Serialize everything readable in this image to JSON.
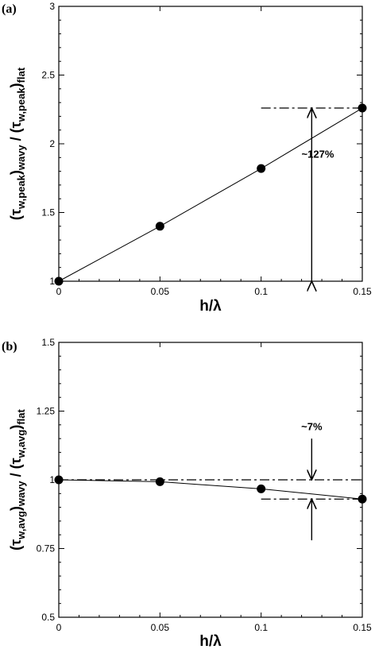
{
  "chart_data": [
    {
      "type": "line",
      "panel_label": "(a)",
      "x": [
        0,
        0.05,
        0.1,
        0.15
      ],
      "series": [
        {
          "values": [
            1.0,
            1.4,
            1.82,
            2.26
          ]
        }
      ],
      "xlabel": "h/λ",
      "ylabel_parts": [
        "(τ",
        "w,peak",
        ")",
        "wavy",
        " / (τ",
        "w,peak",
        ")",
        "flat"
      ],
      "xlim": [
        0,
        0.15
      ],
      "ylim": [
        1,
        3
      ],
      "xticks": [
        0,
        0.05,
        0.1,
        0.15
      ],
      "xtick_labels": [
        "0",
        "0.05",
        "0.1",
        "0.15"
      ],
      "yticks": [
        1,
        1.5,
        2,
        2.5,
        3
      ],
      "ytick_labels": [
        "1",
        "1.5",
        "2",
        "2.5",
        "3"
      ],
      "grid": false,
      "reference_lines": [
        {
          "y": 2.26,
          "x_from": 0.1,
          "x_to": 0.15,
          "style": "dash-dot"
        }
      ],
      "double_arrow": {
        "x": 0.125,
        "y_from": 1.0,
        "y_to": 2.26
      },
      "annotation": {
        "text": "~127%",
        "x": 0.128,
        "y": 1.9
      }
    },
    {
      "type": "line",
      "panel_label": "(b)",
      "x": [
        0,
        0.05,
        0.1,
        0.15
      ],
      "series": [
        {
          "values": [
            1.0,
            0.993,
            0.967,
            0.93
          ]
        }
      ],
      "xlabel": "h/λ",
      "ylabel_parts": [
        "(τ",
        "w,avg",
        ")",
        "wavy",
        " / (τ",
        "w,avg",
        ")",
        "flat"
      ],
      "xlim": [
        0,
        0.15
      ],
      "ylim": [
        0.5,
        1.5
      ],
      "xticks": [
        0,
        0.05,
        0.1,
        0.15
      ],
      "xtick_labels": [
        "0",
        "0.05",
        "0.1",
        "0.15"
      ],
      "yticks": [
        0.5,
        0.75,
        1,
        1.25,
        1.5
      ],
      "ytick_labels": [
        "0.5",
        "0.75",
        "1",
        "1.25",
        "1.5"
      ],
      "grid": false,
      "reference_lines": [
        {
          "y": 1.0,
          "x_from": 0.0,
          "x_to": 0.15,
          "style": "dash-dot"
        },
        {
          "y": 0.93,
          "x_from": 0.1,
          "x_to": 0.15,
          "style": "dash-dot"
        }
      ],
      "inward_arrows": {
        "x": 0.125,
        "top": {
          "y_from": 1.15,
          "y_to": 1.0
        },
        "bottom": {
          "y_from": 0.78,
          "y_to": 0.93
        }
      },
      "annotation": {
        "text": "~7%",
        "x": 0.125,
        "y": 1.18
      }
    }
  ]
}
